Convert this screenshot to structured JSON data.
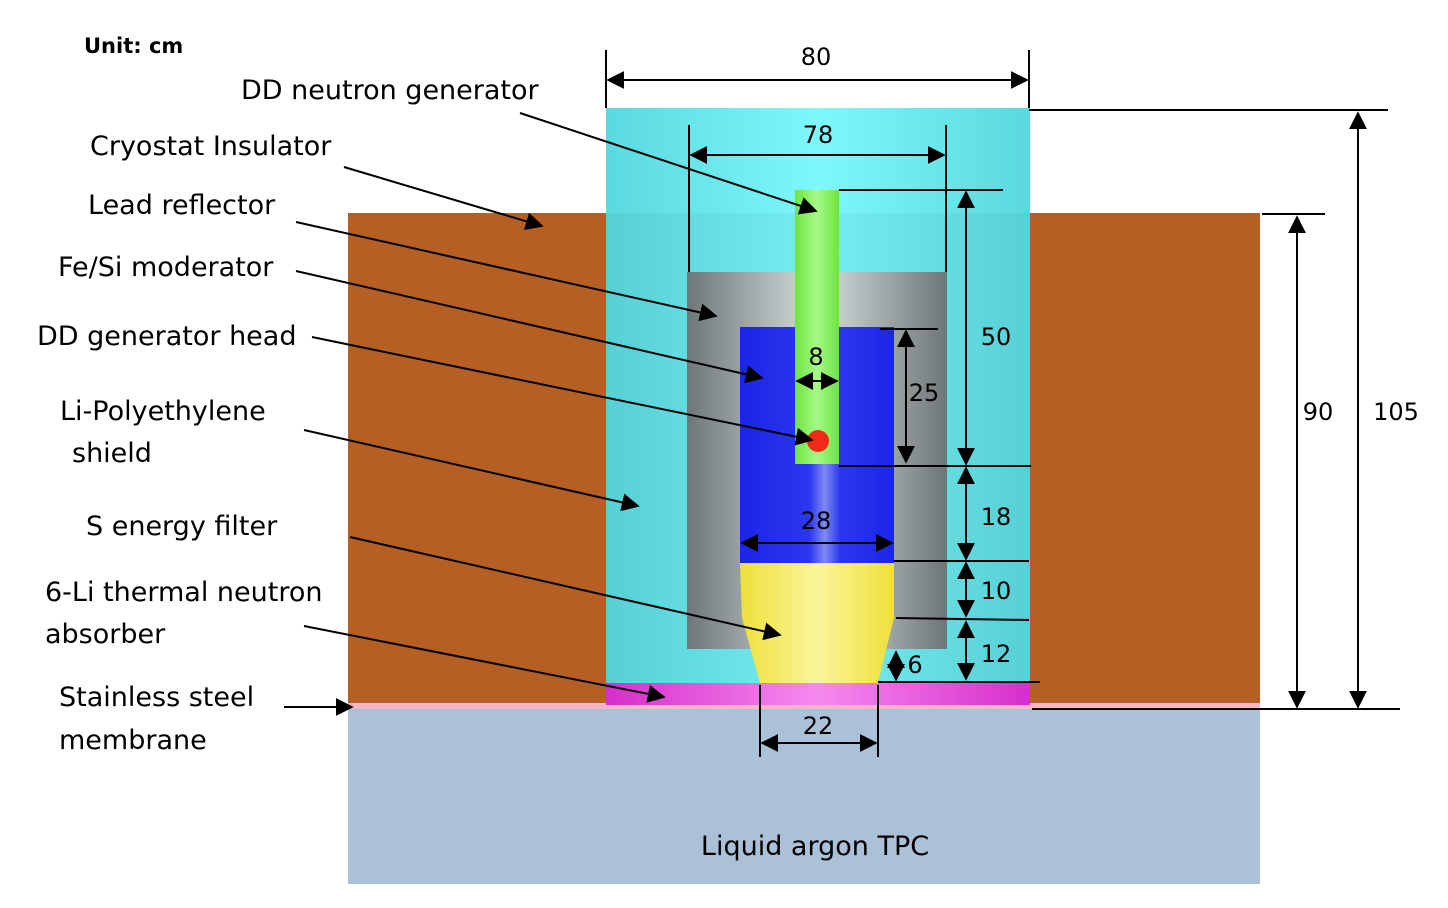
{
  "unit_label": "Unit: cm",
  "colors": {
    "lead": "#b55f24",
    "shield": "#74f6f9",
    "moderator": "#1a25e6",
    "generator": "#7ff04e",
    "generator_head": "#f02a16",
    "filter": "#f5ea50",
    "absorber": "#ec42e0",
    "membrane": "#f4b6c8",
    "tpc": "#abc1d8",
    "reflector": "#9aa4a6"
  },
  "labels": {
    "dd_neutron_generator": "DD neutron generator",
    "cryostat_insulator": "Cryostat Insulator",
    "lead_reflector": "Lead reflector",
    "fe_si_moderator": "Fe/Si moderator",
    "dd_generator_head": "DD generator head",
    "li_polyethylene_line1": "Li-Polyethylene",
    "li_polyethylene_line2": "shield",
    "s_energy_filter": "S energy filter",
    "li6_absorber_line1": "6-Li thermal neutron",
    "li6_absorber_line2": "absorber",
    "stainless_line1": "Stainless steel",
    "stainless_line2": "membrane",
    "liquid_argon_tpc": "Liquid argon TPC"
  },
  "dimensions": {
    "outer_width": "80",
    "reflector_width": "78",
    "generator_width": "8",
    "head_height": "25",
    "generator_length": "50",
    "gap_height": "18",
    "moderator_width": "28",
    "filter_height": "10",
    "filter_taper_height": "12",
    "taper_offset": "6",
    "absorber_width": "22",
    "cryostat_height": "90",
    "total_height": "105"
  }
}
